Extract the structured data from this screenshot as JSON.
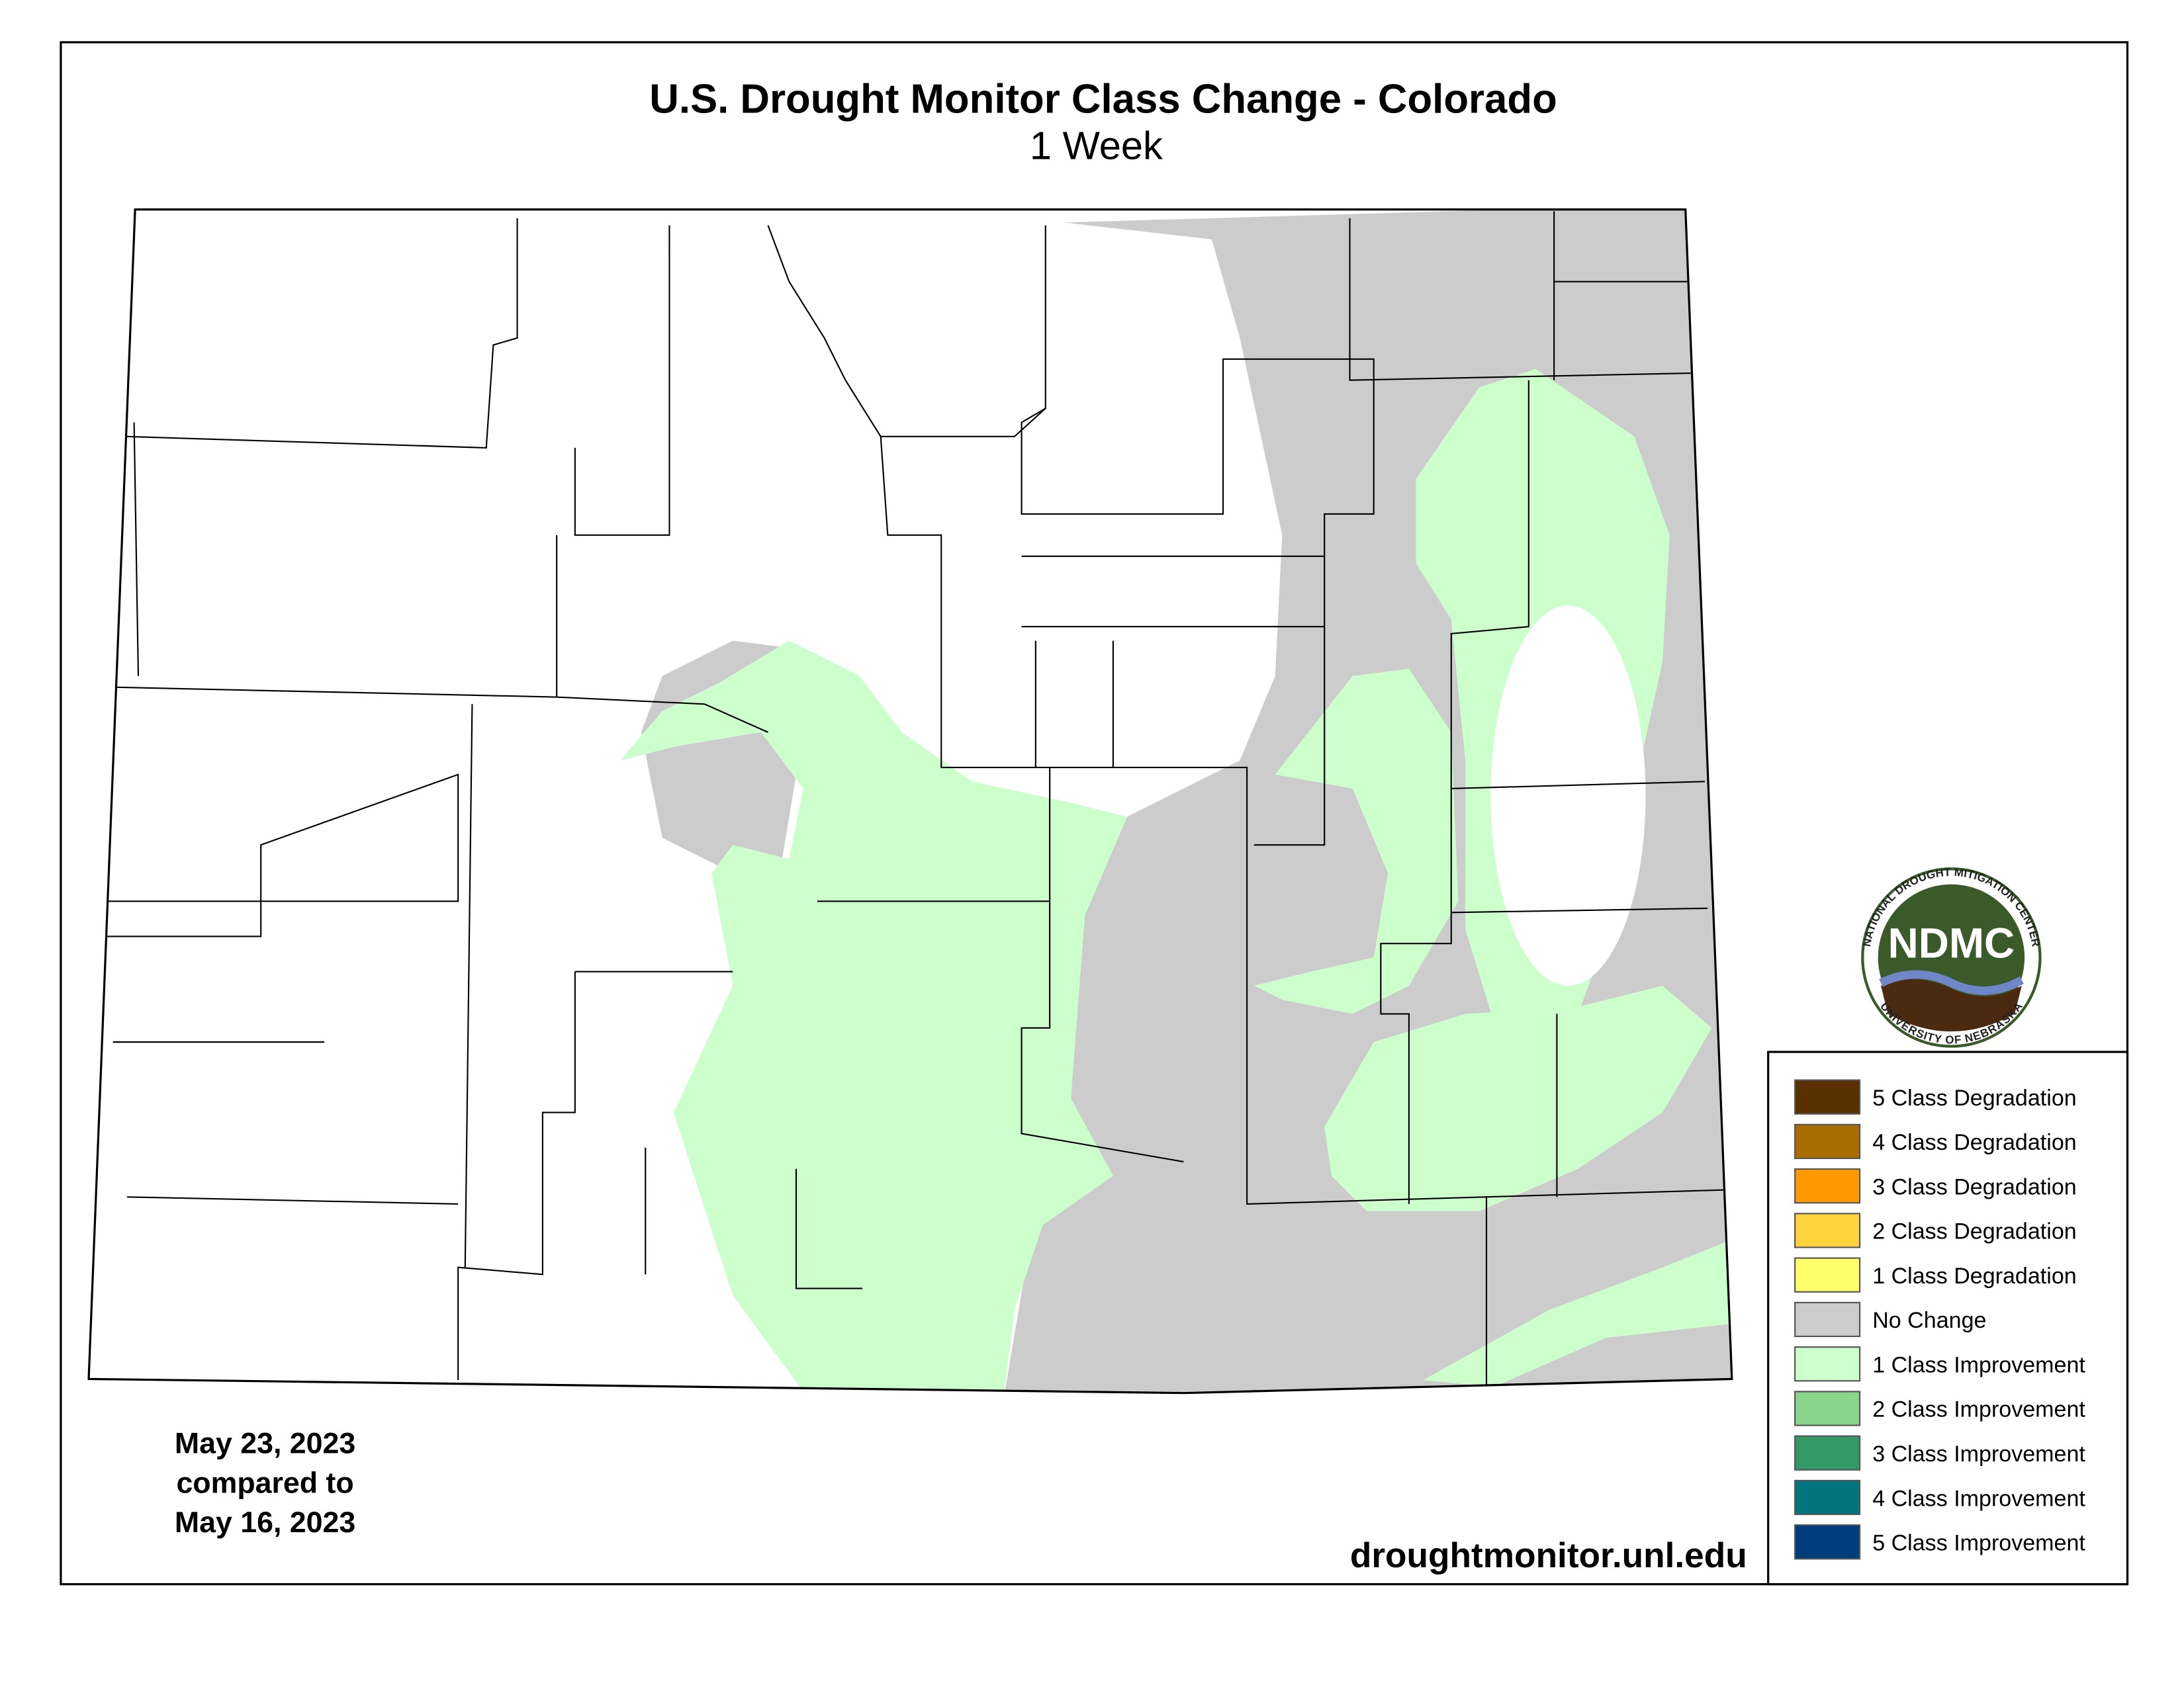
{
  "title": "U.S. Drought Monitor Class Change - Colorado",
  "subtitle": "1 Week",
  "date_note": [
    "May 23, 2023",
    "compared to",
    "May 16, 2023"
  ],
  "url": "droughtmonitor.unl.edu",
  "logo": {
    "abbr": "NDMC",
    "top_text": "NATIONAL DROUGHT MITIGATION CENTER",
    "bottom_text": "UNIVERSITY OF NEBRASKA"
  },
  "legend": {
    "items": [
      {
        "label": "5 Class Degradation",
        "color": "#5a3000"
      },
      {
        "label": "4 Class Degradation",
        "color": "#a86c00"
      },
      {
        "label": "3 Class Degradation",
        "color": "#ff9900"
      },
      {
        "label": "2 Class Degradation",
        "color": "#ffd33b"
      },
      {
        "label": "1 Class Degradation",
        "color": "#ffff6b"
      },
      {
        "label": "No Change",
        "color": "#cccccc"
      },
      {
        "label": "1 Class Improvement",
        "color": "#ccffcc"
      },
      {
        "label": "2 Class Improvement",
        "color": "#8bd48b"
      },
      {
        "label": "3 Class Improvement",
        "color": "#339966"
      },
      {
        "label": "4 Class Improvement",
        "color": "#00747f"
      },
      {
        "label": "5 Class Improvement",
        "color": "#003d7f"
      }
    ]
  }
}
